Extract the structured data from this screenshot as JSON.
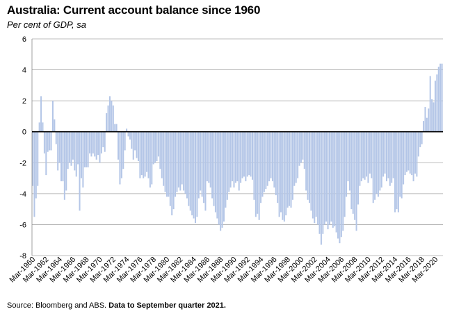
{
  "chart_data": {
    "type": "bar",
    "title": "Australia: Current account balance since 1960",
    "subtitle": "Per cent of GDP, sa",
    "source": "Source: Bloomberg and ABS.",
    "source_note": "Data to September quarter  2021.",
    "ylim": [
      -8,
      6
    ],
    "yticks": [
      6,
      4,
      2,
      0,
      -2,
      -4,
      -6,
      -8
    ],
    "grid": true,
    "bar_color": "#b4c6e7",
    "grid_color": "#a6a6a6",
    "axis_color": "#000000",
    "x_start_year": 1960,
    "x_tick_labels": [
      "Mar-1960",
      "Mar-1962",
      "Mar-1964",
      "Mar-1966",
      "Mar-1968",
      "Mar-1970",
      "Mar-1972",
      "Mar-1974",
      "Mar-1976",
      "Mar-1978",
      "Mar-1980",
      "Mar-1982",
      "Mar-1984",
      "Mar-1986",
      "Mar-1988",
      "Mar-1990",
      "Mar-1992",
      "Mar-1994",
      "Mar-1996",
      "Mar-1998",
      "Mar-2000",
      "Mar-2002",
      "Mar-2004",
      "Mar-2006",
      "Mar-2008",
      "Mar-2010",
      "Mar-2012",
      "Mar-2014",
      "Mar-2016",
      "Mar-2018",
      "Mar-2020"
    ],
    "values": [
      -3.5,
      -5.5,
      -4.3,
      -3.5,
      0.6,
      2.3,
      0.6,
      -1.4,
      -2.8,
      -1.3,
      -1.2,
      -1.2,
      2.0,
      0.8,
      -0.8,
      -2.5,
      -2.0,
      -3.2,
      -3.2,
      -4.4,
      -3.8,
      -2.4,
      -2.0,
      -2.2,
      -1.8,
      -2.5,
      -2.9,
      -2.1,
      -5.1,
      -3.0,
      -3.6,
      -2.3,
      -2.3,
      -2.3,
      -1.4,
      -1.6,
      -1.4,
      -1.6,
      -1.8,
      -1.5,
      -2.0,
      -1.4,
      -1.0,
      -1.3,
      1.2,
      1.7,
      2.3,
      2.0,
      1.7,
      0.5,
      0.5,
      -1.8,
      -3.4,
      -3.0,
      -2.4,
      -1.2,
      0.2,
      -0.3,
      -0.5,
      -1.1,
      -1.8,
      -1.2,
      -1.7,
      -1.9,
      -3.0,
      -2.8,
      -3.0,
      -2.9,
      -2.6,
      -3.0,
      -3.6,
      -3.4,
      -2.1,
      -2.0,
      -1.9,
      -1.6,
      -2.4,
      -3.0,
      -3.5,
      -3.9,
      -4.2,
      -4.2,
      -4.8,
      -5.4,
      -5.0,
      -4.2,
      -3.9,
      -3.6,
      -3.8,
      -3.4,
      -3.8,
      -4.0,
      -4.3,
      -4.8,
      -5.1,
      -5.4,
      -5.6,
      -5.9,
      -5.5,
      -4.3,
      -3.8,
      -4.2,
      -4.6,
      -5.1,
      -3.2,
      -3.3,
      -3.6,
      -4.3,
      -4.8,
      -5.2,
      -5.6,
      -6.0,
      -6.4,
      -6.2,
      -5.8,
      -4.9,
      -4.4,
      -3.9,
      -3.6,
      -3.2,
      -3.6,
      -3.3,
      -3.2,
      -3.8,
      -3.3,
      -3.0,
      -2.9,
      -3.2,
      -2.9,
      -2.8,
      -2.9,
      -3.1,
      -4.4,
      -5.5,
      -5.3,
      -5.7,
      -4.6,
      -4.2,
      -3.9,
      -3.7,
      -3.5,
      -3.2,
      -3.0,
      -3.2,
      -3.6,
      -4.1,
      -4.6,
      -5.5,
      -5.2,
      -5.7,
      -5.8,
      -5.4,
      -4.9,
      -4.8,
      -4.9,
      -4.4,
      -3.5,
      -3.3,
      -3.0,
      -2.2,
      -2.0,
      -1.8,
      -2.4,
      -3.8,
      -4.4,
      -4.6,
      -5.1,
      -5.6,
      -5.9,
      -5.5,
      -6.0,
      -6.6,
      -7.3,
      -6.6,
      -6.0,
      -5.8,
      -6.3,
      -6.0,
      -5.8,
      -6.2,
      -6.1,
      -6.5,
      -6.9,
      -7.2,
      -6.8,
      -6.4,
      -5.5,
      -4.2,
      -3.2,
      -3.8,
      -5.0,
      -5.3,
      -5.7,
      -6.4,
      -4.7,
      -3.5,
      -3.2,
      -3.0,
      -3.1,
      -2.9,
      -3.3,
      -2.7,
      -3.0,
      -4.6,
      -4.4,
      -4.0,
      -4.2,
      -3.8,
      -3.6,
      -2.9,
      -2.7,
      -3.2,
      -3.0,
      -3.5,
      -3.3,
      -3.0,
      -5.2,
      -5.0,
      -5.2,
      -4.2,
      -4.3,
      -3.4,
      -2.8,
      -2.6,
      -2.5,
      -2.7,
      -2.8,
      -3.2,
      -2.7,
      -2.9,
      -1.6,
      -1.0,
      -0.8,
      0.7,
      1.6,
      0.9,
      1.5,
      3.6,
      2.1,
      1.9,
      3.3,
      3.7,
      4.2,
      4.4,
      4.4
    ]
  }
}
